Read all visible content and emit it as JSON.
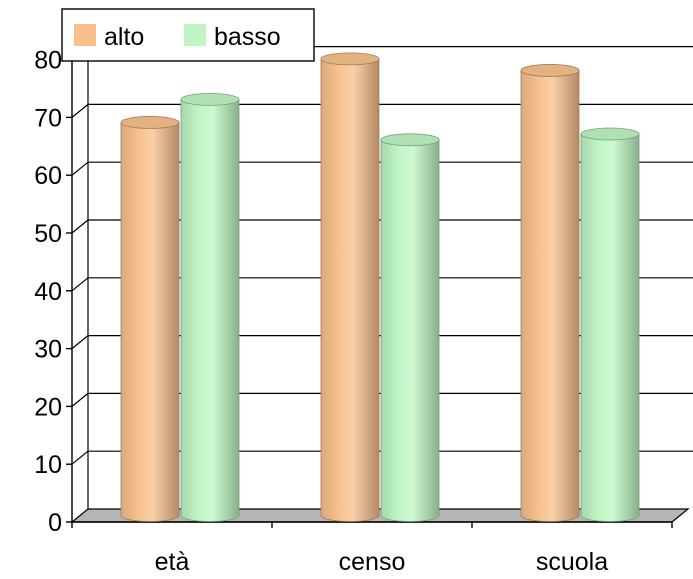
{
  "chart_data": {
    "type": "bar",
    "title": "",
    "xlabel": "",
    "ylabel": "",
    "categories": [
      "età",
      "censo",
      "scuola"
    ],
    "series": [
      {
        "name": "alto",
        "values": [
          68,
          79,
          77
        ],
        "color": "#F8C08C"
      },
      {
        "name": "basso",
        "values": [
          72,
          65,
          66
        ],
        "color": "#BEF5C3"
      }
    ],
    "ylim": [
      0,
      80
    ],
    "yticks": [
      0,
      10,
      20,
      30,
      40,
      50,
      60,
      70,
      80
    ],
    "grid": true,
    "legend": "top-left",
    "floor_color": "#B5B5B5"
  }
}
